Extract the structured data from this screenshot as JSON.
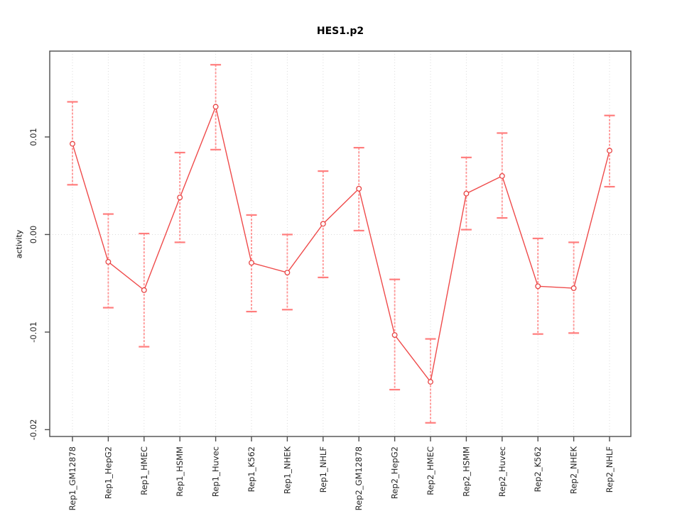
{
  "chart_data": {
    "type": "line",
    "title": "HES1.p2",
    "xlabel": "",
    "ylabel": "activity",
    "legend": "none",
    "grid": "vertical dotted line at each category; horizontal dotted line at y=0",
    "ylim": [
      -0.0207,
      0.0188
    ],
    "yticks": [
      0.01,
      0.0,
      -0.01,
      -0.02
    ],
    "ytick_labels": [
      "0.01",
      "0.00",
      "-0.01",
      "-0.02"
    ],
    "categories": [
      "Rep1_GM12878",
      "Rep1_HepG2",
      "Rep1_HMEC",
      "Rep1_HSMM",
      "Rep1_Huvec",
      "Rep1_K562",
      "Rep1_NHEK",
      "Rep1_NHLF",
      "Rep2_GM12878",
      "Rep2_HepG2",
      "Rep2_HMEC",
      "Rep2_HSMM",
      "Rep2_Huvec",
      "Rep2_K562",
      "Rep2_NHEK",
      "Rep2_NHLF"
    ],
    "series": [
      {
        "name": "activity",
        "marker": "open-circle",
        "values": [
          0.0093,
          -0.0028,
          -0.0057,
          0.0038,
          0.0131,
          -0.0029,
          -0.0039,
          0.0011,
          0.0047,
          -0.0103,
          -0.0151,
          0.0042,
          0.006,
          -0.0053,
          -0.0055,
          0.0086
        ],
        "error_upper": [
          0.0136,
          0.0021,
          0.0001,
          0.0084,
          0.0174,
          0.002,
          0.0,
          0.0065,
          0.0089,
          -0.0046,
          -0.0107,
          0.0079,
          0.0104,
          -0.0004,
          -0.0008,
          0.0122
        ],
        "error_lower": [
          0.0051,
          -0.0075,
          -0.0115,
          -0.0008,
          0.0087,
          -0.0079,
          -0.0077,
          -0.0044,
          0.0004,
          -0.0159,
          -0.0193,
          0.0005,
          0.0017,
          -0.0102,
          -0.0101,
          0.0049
        ]
      }
    ],
    "colors": {
      "line": "#ef4b4b",
      "marker_stroke": "#e84444",
      "marker_fill": "#ffffff",
      "error_bar_line": "#ff9494",
      "error_bar_cap": "#ff7d7d",
      "gridline": "#dbdbdb",
      "axis_box": "#4d4d4d",
      "tick": "#4d4d4d",
      "tick_label": "#262626",
      "background": "#ffffff"
    }
  }
}
